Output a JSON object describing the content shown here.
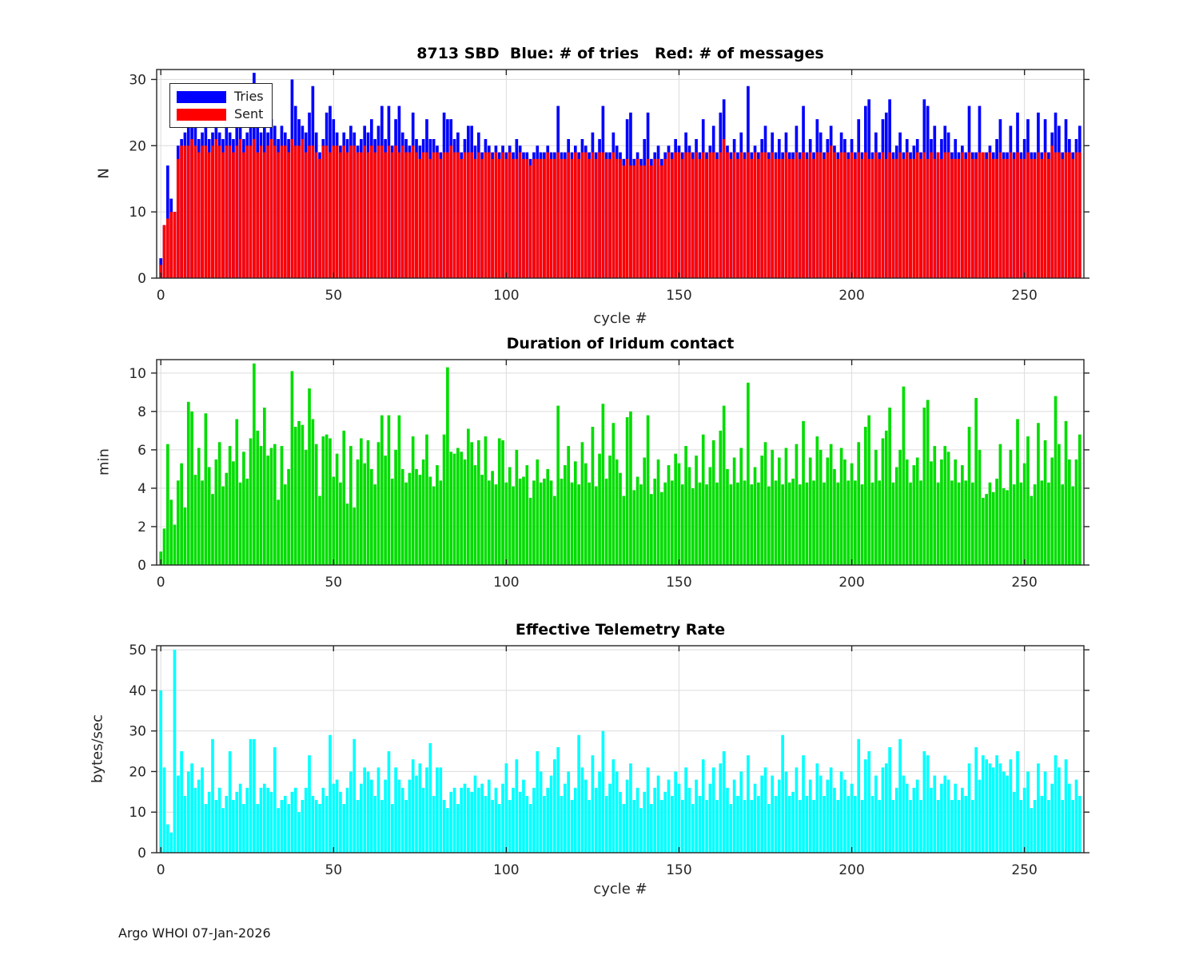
{
  "figure": {
    "footer": "Argo WHOI 07-Jan-2026",
    "background": "#ffffff",
    "grid_color": "#dcdcdc",
    "axis_color": "#262626",
    "tick_label_color": "#262626"
  },
  "chart_data": [
    {
      "type": "bar",
      "title": "8713 SBD  Blue: # of tries   Red: # of messages",
      "xlabel": "cycle #",
      "ylabel": "N",
      "xlim": [
        -1.2,
        267.2
      ],
      "ylim": [
        0,
        31.5
      ],
      "xticks": [
        0,
        50,
        100,
        150,
        200,
        250
      ],
      "yticks": [
        0,
        10,
        20,
        30
      ],
      "grid": true,
      "legend": {
        "position": "top-left",
        "entries": [
          {
            "label": "Tries",
            "color": "#0000ff"
          },
          {
            "label": "Sent",
            "color": "#ff0000"
          }
        ]
      },
      "series": [
        {
          "name": "Tries",
          "color": "#0000ff",
          "values": [
            3,
            8,
            17,
            12,
            10,
            20,
            21,
            22,
            24,
            23,
            24,
            21,
            22,
            24,
            21,
            22,
            23,
            22,
            21,
            24,
            22,
            21,
            26,
            24,
            21,
            22,
            25,
            31,
            24,
            22,
            23,
            22,
            24,
            23,
            21,
            23,
            22,
            21,
            30,
            26,
            24,
            23,
            22,
            25,
            29,
            22,
            19,
            21,
            25,
            26,
            24,
            22,
            20,
            22,
            21,
            23,
            22,
            20,
            21,
            23,
            22,
            24,
            21,
            23,
            26,
            21,
            26,
            20,
            24,
            26,
            22,
            21,
            20,
            25,
            21,
            20,
            21,
            24,
            21,
            21,
            20,
            19,
            25,
            24,
            24,
            21,
            22,
            19,
            21,
            23,
            23,
            20,
            22,
            19,
            21,
            20,
            19,
            20,
            19,
            20,
            19,
            20,
            19,
            21,
            20,
            19,
            19,
            18,
            19,
            20,
            19,
            19,
            20,
            19,
            19,
            26,
            19,
            19,
            21,
            19,
            20,
            19,
            21,
            20,
            19,
            22,
            19,
            21,
            26,
            19,
            19,
            22,
            20,
            19,
            18,
            24,
            25,
            18,
            19,
            18,
            21,
            25,
            18,
            19,
            20,
            18,
            19,
            20,
            19,
            21,
            20,
            19,
            22,
            20,
            19,
            21,
            19,
            24,
            19,
            20,
            23,
            19,
            25,
            27,
            20,
            19,
            21,
            19,
            22,
            19,
            29,
            19,
            20,
            19,
            21,
            23,
            19,
            22,
            19,
            21,
            19,
            22,
            19,
            19,
            23,
            19,
            26,
            19,
            21,
            19,
            24,
            22,
            19,
            21,
            23,
            20,
            19,
            22,
            21,
            19,
            21,
            19,
            24,
            19,
            26,
            27,
            19,
            22,
            19,
            24,
            25,
            27,
            19,
            20,
            22,
            19,
            21,
            19,
            20,
            21,
            19,
            27,
            26,
            21,
            23,
            19,
            21,
            23,
            22,
            19,
            21,
            19,
            20,
            19,
            26,
            19,
            19,
            26,
            19,
            19,
            20,
            19,
            21,
            24,
            19,
            19,
            23,
            19,
            25,
            19,
            21,
            24,
            19,
            19,
            25,
            19,
            24,
            19,
            22,
            25,
            23,
            19,
            24,
            21,
            19,
            21,
            23
          ]
        },
        {
          "name": "Sent",
          "color": "#ff0000",
          "values": [
            2,
            8,
            9,
            10,
            10,
            18,
            20,
            20,
            20,
            21,
            20,
            19,
            20,
            20,
            19,
            20,
            21,
            20,
            19,
            20,
            20,
            19,
            20,
            21,
            19,
            20,
            20,
            21,
            19,
            20,
            19,
            20,
            21,
            20,
            19,
            20,
            20,
            19,
            21,
            20,
            20,
            21,
            19,
            20,
            20,
            19,
            18,
            20,
            20,
            19,
            20,
            20,
            19,
            20,
            19,
            20,
            20,
            19,
            19,
            20,
            19,
            20,
            19,
            20,
            20,
            19,
            20,
            19,
            20,
            19,
            20,
            19,
            19,
            20,
            19,
            18,
            19,
            19,
            18,
            19,
            19,
            18,
            19,
            19,
            20,
            19,
            19,
            18,
            19,
            19,
            19,
            18,
            19,
            18,
            19,
            19,
            18,
            19,
            18,
            19,
            18,
            19,
            18,
            18,
            19,
            18,
            18,
            17,
            18,
            18,
            18,
            18,
            19,
            18,
            18,
            19,
            18,
            18,
            19,
            18,
            19,
            18,
            19,
            19,
            18,
            19,
            18,
            19,
            19,
            18,
            18,
            19,
            18,
            18,
            17,
            18,
            17,
            17,
            18,
            17,
            17,
            18,
            17,
            18,
            18,
            17,
            18,
            19,
            18,
            19,
            19,
            18,
            19,
            19,
            18,
            19,
            18,
            19,
            18,
            19,
            19,
            18,
            19,
            21,
            19,
            18,
            19,
            18,
            19,
            18,
            19,
            18,
            19,
            18,
            19,
            19,
            18,
            19,
            18,
            18,
            18,
            19,
            18,
            18,
            19,
            18,
            19,
            18,
            19,
            18,
            19,
            19,
            18,
            19,
            20,
            19,
            18,
            19,
            19,
            18,
            19,
            18,
            19,
            18,
            19,
            18,
            18,
            19,
            18,
            19,
            18,
            19,
            18,
            18,
            19,
            18,
            19,
            18,
            18,
            19,
            18,
            19,
            18,
            19,
            18,
            19,
            18,
            19,
            19,
            18,
            18,
            18,
            19,
            18,
            19,
            18,
            18,
            19,
            19,
            18,
            19,
            18,
            18,
            19,
            18,
            18,
            19,
            18,
            19,
            18,
            18,
            19,
            18,
            18,
            19,
            18,
            19,
            18,
            20,
            19,
            19,
            18,
            19,
            19,
            18,
            19,
            19
          ]
        }
      ]
    },
    {
      "type": "bar",
      "title": "Duration of Iridum contact",
      "xlabel": "",
      "ylabel": "min",
      "xlim": [
        -1.2,
        267.2
      ],
      "ylim": [
        0,
        10.7
      ],
      "xticks": [
        0,
        50,
        100,
        150,
        200,
        250
      ],
      "yticks": [
        0,
        2,
        4,
        6,
        8,
        10
      ],
      "grid": true,
      "series": [
        {
          "name": "Duration",
          "color": "#00dd00",
          "values": [
            0.7,
            1.9,
            6.3,
            3.4,
            2.1,
            4.4,
            5.3,
            3.0,
            8.5,
            8.0,
            4.7,
            6.1,
            4.4,
            7.9,
            5.1,
            3.7,
            5.5,
            6.4,
            4.1,
            4.8,
            6.2,
            5.4,
            7.6,
            4.3,
            5.9,
            4.5,
            6.6,
            10.5,
            7.0,
            6.2,
            8.2,
            5.7,
            6.1,
            6.3,
            3.4,
            6.2,
            4.2,
            5.0,
            10.1,
            7.2,
            7.5,
            7.3,
            6.0,
            9.2,
            7.6,
            6.3,
            3.6,
            6.7,
            6.8,
            6.6,
            4.6,
            5.8,
            4.3,
            7.0,
            3.2,
            6.2,
            3.0,
            5.5,
            6.6,
            5.3,
            6.5,
            5.0,
            4.2,
            6.4,
            7.8,
            5.7,
            7.8,
            4.5,
            6.0,
            7.8,
            5.0,
            4.3,
            4.8,
            6.7,
            5.0,
            4.7,
            5.5,
            6.8,
            4.6,
            4.1,
            5.2,
            4.4,
            6.8,
            10.3,
            5.9,
            5.8,
            6.1,
            5.9,
            5.5,
            7.1,
            6.4,
            5.2,
            6.5,
            4.7,
            6.7,
            4.4,
            4.9,
            4.2,
            6.6,
            6.5,
            4.3,
            5.1,
            4.1,
            6.0,
            4.5,
            4.6,
            5.2,
            3.5,
            4.4,
            5.5,
            4.3,
            4.5,
            5.0,
            4.4,
            3.6,
            8.3,
            4.5,
            5.2,
            6.2,
            4.3,
            5.4,
            4.2,
            6.4,
            5.3,
            4.3,
            7.2,
            4.1,
            5.8,
            8.4,
            4.5,
            5.7,
            7.4,
            5.5,
            4.8,
            3.6,
            7.7,
            8.0,
            3.9,
            4.6,
            4.2,
            5.6,
            7.8,
            3.7,
            4.5,
            5.5,
            3.8,
            4.3,
            5.2,
            4.4,
            5.8,
            5.3,
            4.2,
            6.2,
            5.1,
            4.0,
            5.7,
            4.3,
            6.8,
            4.2,
            5.1,
            6.5,
            4.3,
            7.0,
            8.3,
            5.0,
            4.2,
            5.6,
            4.3,
            6.1,
            4.4,
            9.5,
            4.2,
            5.1,
            4.3,
            5.7,
            6.4,
            4.1,
            6.0,
            4.4,
            5.6,
            4.2,
            6.1,
            4.3,
            4.5,
            6.3,
            4.2,
            7.5,
            4.3,
            5.6,
            4.4,
            6.7,
            6.0,
            4.3,
            5.6,
            6.3,
            5.0,
            4.3,
            6.1,
            5.5,
            4.4,
            5.3,
            4.4,
            6.4,
            4.2,
            7.2,
            7.8,
            4.3,
            6.0,
            4.4,
            6.6,
            7.0,
            8.2,
            4.3,
            5.1,
            6.0,
            9.3,
            5.5,
            4.3,
            5.2,
            5.6,
            4.4,
            8.2,
            8.6,
            5.4,
            6.2,
            4.3,
            5.5,
            6.2,
            5.9,
            4.4,
            5.5,
            4.3,
            5.2,
            4.4,
            7.2,
            4.3,
            8.7,
            6.0,
            3.5,
            3.7,
            4.3,
            3.8,
            4.5,
            6.3,
            4.0,
            3.9,
            6.0,
            4.2,
            7.6,
            4.3,
            5.3,
            6.7,
            3.6,
            4.2,
            7.4,
            4.4,
            6.5,
            4.3,
            5.6,
            8.8,
            6.3,
            4.2,
            7.5,
            5.5,
            4.1,
            5.5,
            6.8
          ]
        }
      ]
    },
    {
      "type": "bar",
      "title": "Effective Telemetry Rate",
      "xlabel": "cycle #",
      "ylabel": "bytes/sec",
      "xlim": [
        -1.2,
        267.2
      ],
      "ylim": [
        0,
        51
      ],
      "xticks": [
        0,
        50,
        100,
        150,
        200,
        250
      ],
      "yticks": [
        0,
        10,
        20,
        30,
        40,
        50
      ],
      "grid": true,
      "series": [
        {
          "name": "Rate",
          "color": "#00ffff",
          "values": [
            40,
            21,
            7,
            5,
            50,
            19,
            25,
            14,
            20,
            22,
            16,
            18,
            21,
            12,
            15,
            28,
            13,
            16,
            11,
            14,
            25,
            13,
            15,
            17,
            12,
            16,
            28,
            28,
            12,
            16,
            17,
            16,
            15,
            26,
            11,
            13,
            14,
            12,
            15,
            16,
            10,
            13,
            16,
            24,
            14,
            13,
            12,
            16,
            14,
            29,
            17,
            18,
            15,
            12,
            16,
            20,
            28,
            13,
            17,
            21,
            20,
            18,
            14,
            21,
            13,
            18,
            25,
            12,
            21,
            18,
            16,
            13,
            18,
            23,
            19,
            22,
            16,
            21,
            27,
            14,
            21,
            21,
            13,
            11,
            15,
            16,
            12,
            16,
            17,
            16,
            15,
            19,
            16,
            17,
            14,
            18,
            13,
            16,
            12,
            17,
            22,
            13,
            16,
            23,
            15,
            18,
            14,
            12,
            16,
            25,
            20,
            14,
            16,
            19,
            23,
            26,
            14,
            17,
            20,
            13,
            16,
            29,
            21,
            18,
            13,
            24,
            16,
            20,
            30,
            14,
            17,
            23,
            20,
            15,
            12,
            18,
            22,
            13,
            16,
            11,
            15,
            21,
            12,
            16,
            19,
            13,
            15,
            18,
            14,
            20,
            17,
            13,
            21,
            16,
            12,
            18,
            14,
            23,
            13,
            17,
            21,
            13,
            22,
            25,
            16,
            12,
            18,
            14,
            20,
            13,
            24,
            13,
            17,
            14,
            19,
            21,
            12,
            19,
            14,
            18,
            29,
            20,
            14,
            15,
            21,
            13,
            24,
            14,
            18,
            13,
            22,
            19,
            14,
            18,
            21,
            16,
            13,
            20,
            18,
            14,
            17,
            14,
            28,
            13,
            23,
            25,
            14,
            19,
            13,
            21,
            22,
            26,
            13,
            16,
            28,
            19,
            17,
            13,
            16,
            18,
            13,
            25,
            24,
            16,
            19,
            13,
            17,
            19,
            18,
            13,
            17,
            13,
            16,
            14,
            22,
            13,
            26,
            18,
            24,
            23,
            22,
            21,
            24,
            22,
            20,
            19,
            23,
            15,
            25,
            13,
            16,
            20,
            11,
            13,
            22,
            14,
            20,
            13,
            17,
            24,
            21,
            13,
            23,
            17,
            13,
            18,
            14
          ]
        }
      ]
    }
  ]
}
